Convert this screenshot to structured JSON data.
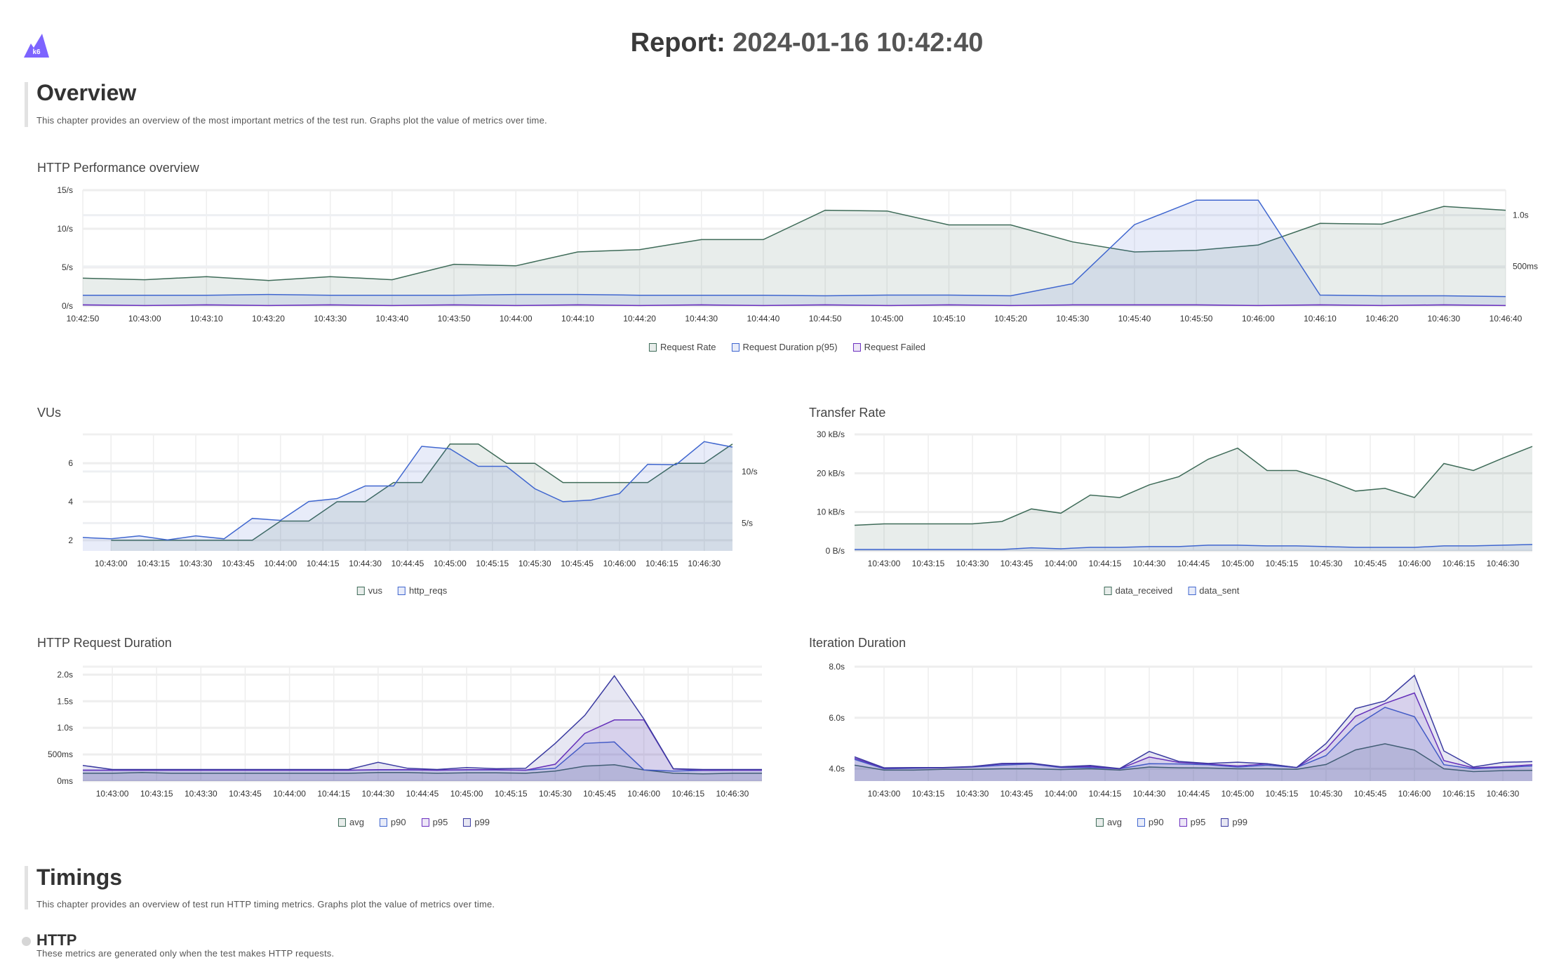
{
  "header": {
    "logo_text": "k6",
    "report_label": "Report:",
    "report_timestamp": "2024-01-16 10:42:40"
  },
  "overview": {
    "heading": "Overview",
    "description": "This chapter provides an overview of the most important metrics of the test run. Graphs plot the value of metrics over time."
  },
  "timings": {
    "heading": "Timings",
    "description": "This chapter provides an overview of test run HTTP timing metrics. Graphs plot the value of metrics over time.",
    "http": {
      "heading": "HTTP",
      "description": "These metrics are generated only when the test makes HTTP requests."
    }
  },
  "colors": {
    "green": "#3e6b58",
    "blue": "#3f66cf",
    "purple": "#6b2fbf",
    "indigo": "#3a3aa0"
  },
  "chart_data": [
    {
      "id": "http_performance",
      "type": "area",
      "title": "HTTP Performance overview",
      "grid": true,
      "legend": "bottom",
      "x": [
        "10:42:50",
        "10:43:00",
        "10:43:10",
        "10:43:20",
        "10:43:30",
        "10:43:40",
        "10:43:50",
        "10:44:00",
        "10:44:10",
        "10:44:20",
        "10:44:30",
        "10:44:40",
        "10:44:50",
        "10:45:00",
        "10:45:10",
        "10:45:20",
        "10:45:30",
        "10:45:40",
        "10:45:50",
        "10:46:00",
        "10:46:10",
        "10:46:20",
        "10:46:30",
        "10:46:40"
      ],
      "x_ticks": [
        "10:42:50",
        "10:43:00",
        "10:43:10",
        "10:43:20",
        "10:43:30",
        "10:43:40",
        "10:43:50",
        "10:44:00",
        "10:44:10",
        "10:44:20",
        "10:44:30",
        "10:44:40",
        "10:44:50",
        "10:45:00",
        "10:45:10",
        "10:45:20",
        "10:45:30",
        "10:45:40",
        "10:45:50",
        "10:46:00",
        "10:46:10",
        "10:46:20",
        "10:46:30",
        "10:46:40"
      ],
      "y_left": {
        "range": [
          0,
          15
        ],
        "ticks": [
          {
            "value": 0,
            "label": "0/s"
          },
          {
            "value": 5,
            "label": "5/s"
          },
          {
            "value": 10,
            "label": "10/s"
          },
          {
            "value": 15,
            "label": "15/s"
          }
        ]
      },
      "y_right": {
        "range": [
          115,
          1244
        ],
        "ticks": [
          {
            "value": 500,
            "label": "500ms"
          },
          {
            "value": 1000,
            "label": "1.0s"
          }
        ]
      },
      "series": [
        {
          "name": "Request Rate",
          "axis": "left",
          "color": "#3e6b58",
          "values": [
            3.6,
            3.4,
            3.8,
            3.3,
            3.8,
            3.4,
            5.4,
            5.2,
            7.0,
            7.3,
            8.6,
            8.6,
            12.4,
            12.3,
            10.5,
            10.5,
            8.3,
            7.0,
            7.2,
            7.9,
            10.7,
            10.6,
            12.9,
            12.4
          ]
        },
        {
          "name": "Request Duration p(95)",
          "axis": "right",
          "color": "#3f66cf",
          "values": [
            220,
            220,
            220,
            227,
            220,
            220,
            220,
            227,
            227,
            220,
            220,
            220,
            214,
            221,
            221,
            214,
            332,
            908,
            1147,
            1147,
            221,
            214,
            214,
            207
          ]
        },
        {
          "name": "Request Failed",
          "axis": "left",
          "color": "#6b2fbf",
          "values": [
            0.15,
            0.05,
            0.15,
            0.05,
            0.15,
            0.05,
            0.15,
            0.05,
            0.15,
            0.05,
            0.15,
            0.05,
            0.15,
            0.05,
            0.15,
            0.05,
            0.15,
            0.15,
            0.15,
            0.05,
            0.15,
            0.05,
            0.15,
            0.05
          ]
        }
      ]
    },
    {
      "id": "vus",
      "type": "area",
      "title": "VUs",
      "grid": true,
      "legend": "bottom",
      "x": [
        "10:42:50",
        "10:43:00",
        "10:43:10",
        "10:43:20",
        "10:43:30",
        "10:43:40",
        "10:43:50",
        "10:44:00",
        "10:44:10",
        "10:44:20",
        "10:44:30",
        "10:44:40",
        "10:44:50",
        "10:45:00",
        "10:45:10",
        "10:45:20",
        "10:45:30",
        "10:45:40",
        "10:45:50",
        "10:46:00",
        "10:46:10",
        "10:46:20",
        "10:46:30",
        "10:46:40"
      ],
      "x_ticks": [
        "10:43:00",
        "10:43:15",
        "10:43:30",
        "10:43:45",
        "10:44:00",
        "10:44:15",
        "10:44:30",
        "10:44:45",
        "10:45:00",
        "10:45:15",
        "10:45:30",
        "10:45:45",
        "10:46:00",
        "10:46:15",
        "10:46:30"
      ],
      "y_left": {
        "range": [
          1.45,
          7.5
        ],
        "ticks": [
          {
            "value": 2,
            "label": "2"
          },
          {
            "value": 4,
            "label": "4"
          },
          {
            "value": 6,
            "label": "6"
          }
        ]
      },
      "y_right": {
        "range": [
          2.3,
          13.6
        ],
        "ticks": [
          {
            "value": 5,
            "label": "5/s"
          },
          {
            "value": 10,
            "label": "10/s"
          }
        ]
      },
      "series": [
        {
          "name": "vus",
          "axis": "left",
          "color": "#3e6b58",
          "values": [
            null,
            2,
            2,
            2,
            2,
            2,
            2,
            3,
            3,
            4,
            4,
            5,
            5,
            7,
            7,
            6,
            6,
            5,
            5,
            5,
            5,
            6,
            6,
            7
          ]
        },
        {
          "name": "http_reqs",
          "axis": "right",
          "color": "#3f66cf",
          "values": [
            3.6,
            3.47,
            3.76,
            3.36,
            3.76,
            3.47,
            5.45,
            5.26,
            7.09,
            7.37,
            8.6,
            8.6,
            12.44,
            12.2,
            10.5,
            10.5,
            8.33,
            7.07,
            7.23,
            7.86,
            10.7,
            10.66,
            12.9,
            12.37
          ]
        }
      ]
    },
    {
      "id": "transfer_rate",
      "type": "area",
      "title": "Transfer Rate",
      "grid": true,
      "legend": "bottom",
      "x": [
        "10:42:50",
        "10:43:00",
        "10:43:10",
        "10:43:20",
        "10:43:30",
        "10:43:40",
        "10:43:50",
        "10:44:00",
        "10:44:10",
        "10:44:20",
        "10:44:30",
        "10:44:40",
        "10:44:50",
        "10:45:00",
        "10:45:10",
        "10:45:20",
        "10:45:30",
        "10:45:40",
        "10:45:50",
        "10:46:00",
        "10:46:10",
        "10:46:20",
        "10:46:30",
        "10:46:40"
      ],
      "x_ticks": [
        "10:43:00",
        "10:43:15",
        "10:43:30",
        "10:43:45",
        "10:44:00",
        "10:44:15",
        "10:44:30",
        "10:44:45",
        "10:45:00",
        "10:45:15",
        "10:45:30",
        "10:45:45",
        "10:46:00",
        "10:46:15",
        "10:46:30"
      ],
      "y_left": {
        "range": [
          0,
          30
        ],
        "ticks": [
          {
            "value": 0,
            "label": "0 B/s"
          },
          {
            "value": 10,
            "label": "10 kB/s"
          },
          {
            "value": 20,
            "label": "20 kB/s"
          },
          {
            "value": 30,
            "label": "30 kB/s"
          }
        ]
      },
      "series": [
        {
          "name": "data_received",
          "axis": "left",
          "color": "#3e6b58",
          "values": [
            6.6,
            6.96,
            6.96,
            6.96,
            6.96,
            7.57,
            10.8,
            9.7,
            14.36,
            13.74,
            17.0,
            19.1,
            23.6,
            26.45,
            20.7,
            20.7,
            18.3,
            15.4,
            16.1,
            13.74,
            22.5,
            20.7,
            23.9,
            26.9
          ]
        },
        {
          "name": "data_sent",
          "axis": "left",
          "color": "#3f66cf",
          "values": [
            0.37,
            0.37,
            0.37,
            0.37,
            0.37,
            0.37,
            0.8,
            0.55,
            0.9,
            0.9,
            1.1,
            1.1,
            1.47,
            1.47,
            1.28,
            1.28,
            1.1,
            0.9,
            0.9,
            0.9,
            1.28,
            1.28,
            1.47,
            1.65
          ]
        }
      ]
    },
    {
      "id": "http_request_duration",
      "type": "area",
      "title": "HTTP Request Duration",
      "grid": true,
      "legend": "bottom",
      "x": [
        "10:42:50",
        "10:43:00",
        "10:43:10",
        "10:43:20",
        "10:43:30",
        "10:43:40",
        "10:43:50",
        "10:44:00",
        "10:44:10",
        "10:44:20",
        "10:44:30",
        "10:44:40",
        "10:44:50",
        "10:45:00",
        "10:45:10",
        "10:45:20",
        "10:45:30",
        "10:45:40",
        "10:45:50",
        "10:46:00",
        "10:46:10",
        "10:46:20",
        "10:46:30",
        "10:46:40"
      ],
      "x_ticks": [
        "10:43:00",
        "10:43:15",
        "10:43:30",
        "10:43:45",
        "10:44:00",
        "10:44:15",
        "10:44:30",
        "10:44:45",
        "10:45:00",
        "10:45:15",
        "10:45:30",
        "10:45:45",
        "10:46:00",
        "10:46:15",
        "10:46:30"
      ],
      "y_left": {
        "range": [
          0,
          2150
        ],
        "ticks": [
          {
            "value": 0,
            "label": "0ms"
          },
          {
            "value": 500,
            "label": "500ms"
          },
          {
            "value": 1000,
            "label": "1.0s"
          },
          {
            "value": 1500,
            "label": "1.5s"
          },
          {
            "value": 2000,
            "label": "2.0s"
          }
        ]
      },
      "series": [
        {
          "name": "avg",
          "axis": "left",
          "color": "#3e6b58",
          "values": [
            147,
            147,
            160,
            147,
            147,
            147,
            147,
            147,
            147,
            147,
            160,
            160,
            147,
            155,
            155,
            147,
            187,
            280,
            307,
            210,
            147,
            134,
            147,
            147
          ]
        },
        {
          "name": "p90",
          "axis": "left",
          "color": "#3f66cf",
          "values": [
            205,
            205,
            205,
            205,
            205,
            205,
            205,
            205,
            205,
            205,
            210,
            210,
            205,
            210,
            210,
            205,
            240,
            708,
            735,
            210,
            187,
            200,
            205,
            205
          ]
        },
        {
          "name": "p95",
          "axis": "left",
          "color": "#6b2fbf",
          "values": [
            205,
            205,
            205,
            205,
            205,
            205,
            205,
            205,
            205,
            205,
            215,
            215,
            205,
            215,
            215,
            205,
            316,
            895,
            1149,
            1149,
            227,
            205,
            205,
            205
          ]
        },
        {
          "name": "p99",
          "axis": "left",
          "color": "#3a3aa0",
          "values": [
            294,
            218,
            218,
            218,
            218,
            218,
            218,
            218,
            218,
            218,
            352,
            240,
            218,
            254,
            232,
            240,
            708,
            1234,
            1978,
            1167,
            232,
            218,
            218,
            218
          ]
        }
      ]
    },
    {
      "id": "iteration_duration",
      "type": "area",
      "title": "Iteration Duration",
      "grid": true,
      "legend": "bottom",
      "x": [
        "10:42:50",
        "10:43:00",
        "10:43:10",
        "10:43:20",
        "10:43:30",
        "10:43:40",
        "10:43:50",
        "10:44:00",
        "10:44:10",
        "10:44:20",
        "10:44:30",
        "10:44:40",
        "10:44:50",
        "10:45:00",
        "10:45:10",
        "10:45:20",
        "10:45:30",
        "10:45:40",
        "10:45:50",
        "10:46:00",
        "10:46:10",
        "10:46:20",
        "10:46:30",
        "10:46:40"
      ],
      "x_ticks": [
        "10:43:00",
        "10:43:15",
        "10:43:30",
        "10:43:45",
        "10:44:00",
        "10:44:15",
        "10:44:30",
        "10:44:45",
        "10:45:00",
        "10:45:15",
        "10:45:30",
        "10:45:45",
        "10:46:00",
        "10:46:15",
        "10:46:30"
      ],
      "y_left": {
        "range": [
          3.52,
          8.0
        ],
        "ticks": [
          {
            "value": 4,
            "label": "4.0s"
          },
          {
            "value": 6,
            "label": "6.0s"
          },
          {
            "value": 8,
            "label": "8.0s"
          }
        ]
      },
      "series": [
        {
          "name": "avg",
          "axis": "left",
          "color": "#3e6b58",
          "values": [
            4.14,
            3.95,
            3.95,
            3.98,
            3.98,
            4.0,
            4.0,
            3.97,
            4.0,
            3.95,
            4.07,
            4.04,
            4.03,
            4.0,
            4.0,
            3.98,
            4.17,
            4.74,
            4.98,
            4.73,
            4.0,
            3.89,
            3.93,
            3.94
          ]
        },
        {
          "name": "p90",
          "axis": "left",
          "color": "#3f66cf",
          "values": [
            4.37,
            4.0,
            4.02,
            4.04,
            4.07,
            4.14,
            4.19,
            4.05,
            4.05,
            4.0,
            4.2,
            4.19,
            4.16,
            4.07,
            4.14,
            4.05,
            4.52,
            5.68,
            6.41,
            6.04,
            4.16,
            4.0,
            4.05,
            4.11
          ]
        },
        {
          "name": "p95",
          "axis": "left",
          "color": "#6b2fbf",
          "values": [
            4.42,
            4.02,
            4.04,
            4.04,
            4.08,
            4.19,
            4.21,
            4.07,
            4.09,
            4.0,
            4.46,
            4.25,
            4.19,
            4.11,
            4.19,
            4.05,
            4.77,
            6.05,
            6.56,
            6.97,
            4.32,
            4.04,
            4.08,
            4.16
          ]
        },
        {
          "name": "p99",
          "axis": "left",
          "color": "#3a3aa0",
          "values": [
            4.47,
            4.04,
            4.05,
            4.05,
            4.09,
            4.21,
            4.22,
            4.08,
            4.13,
            4.01,
            4.68,
            4.29,
            4.21,
            4.26,
            4.2,
            4.05,
            4.99,
            6.36,
            6.66,
            7.66,
            4.7,
            4.07,
            4.25,
            4.28
          ]
        }
      ]
    }
  ]
}
